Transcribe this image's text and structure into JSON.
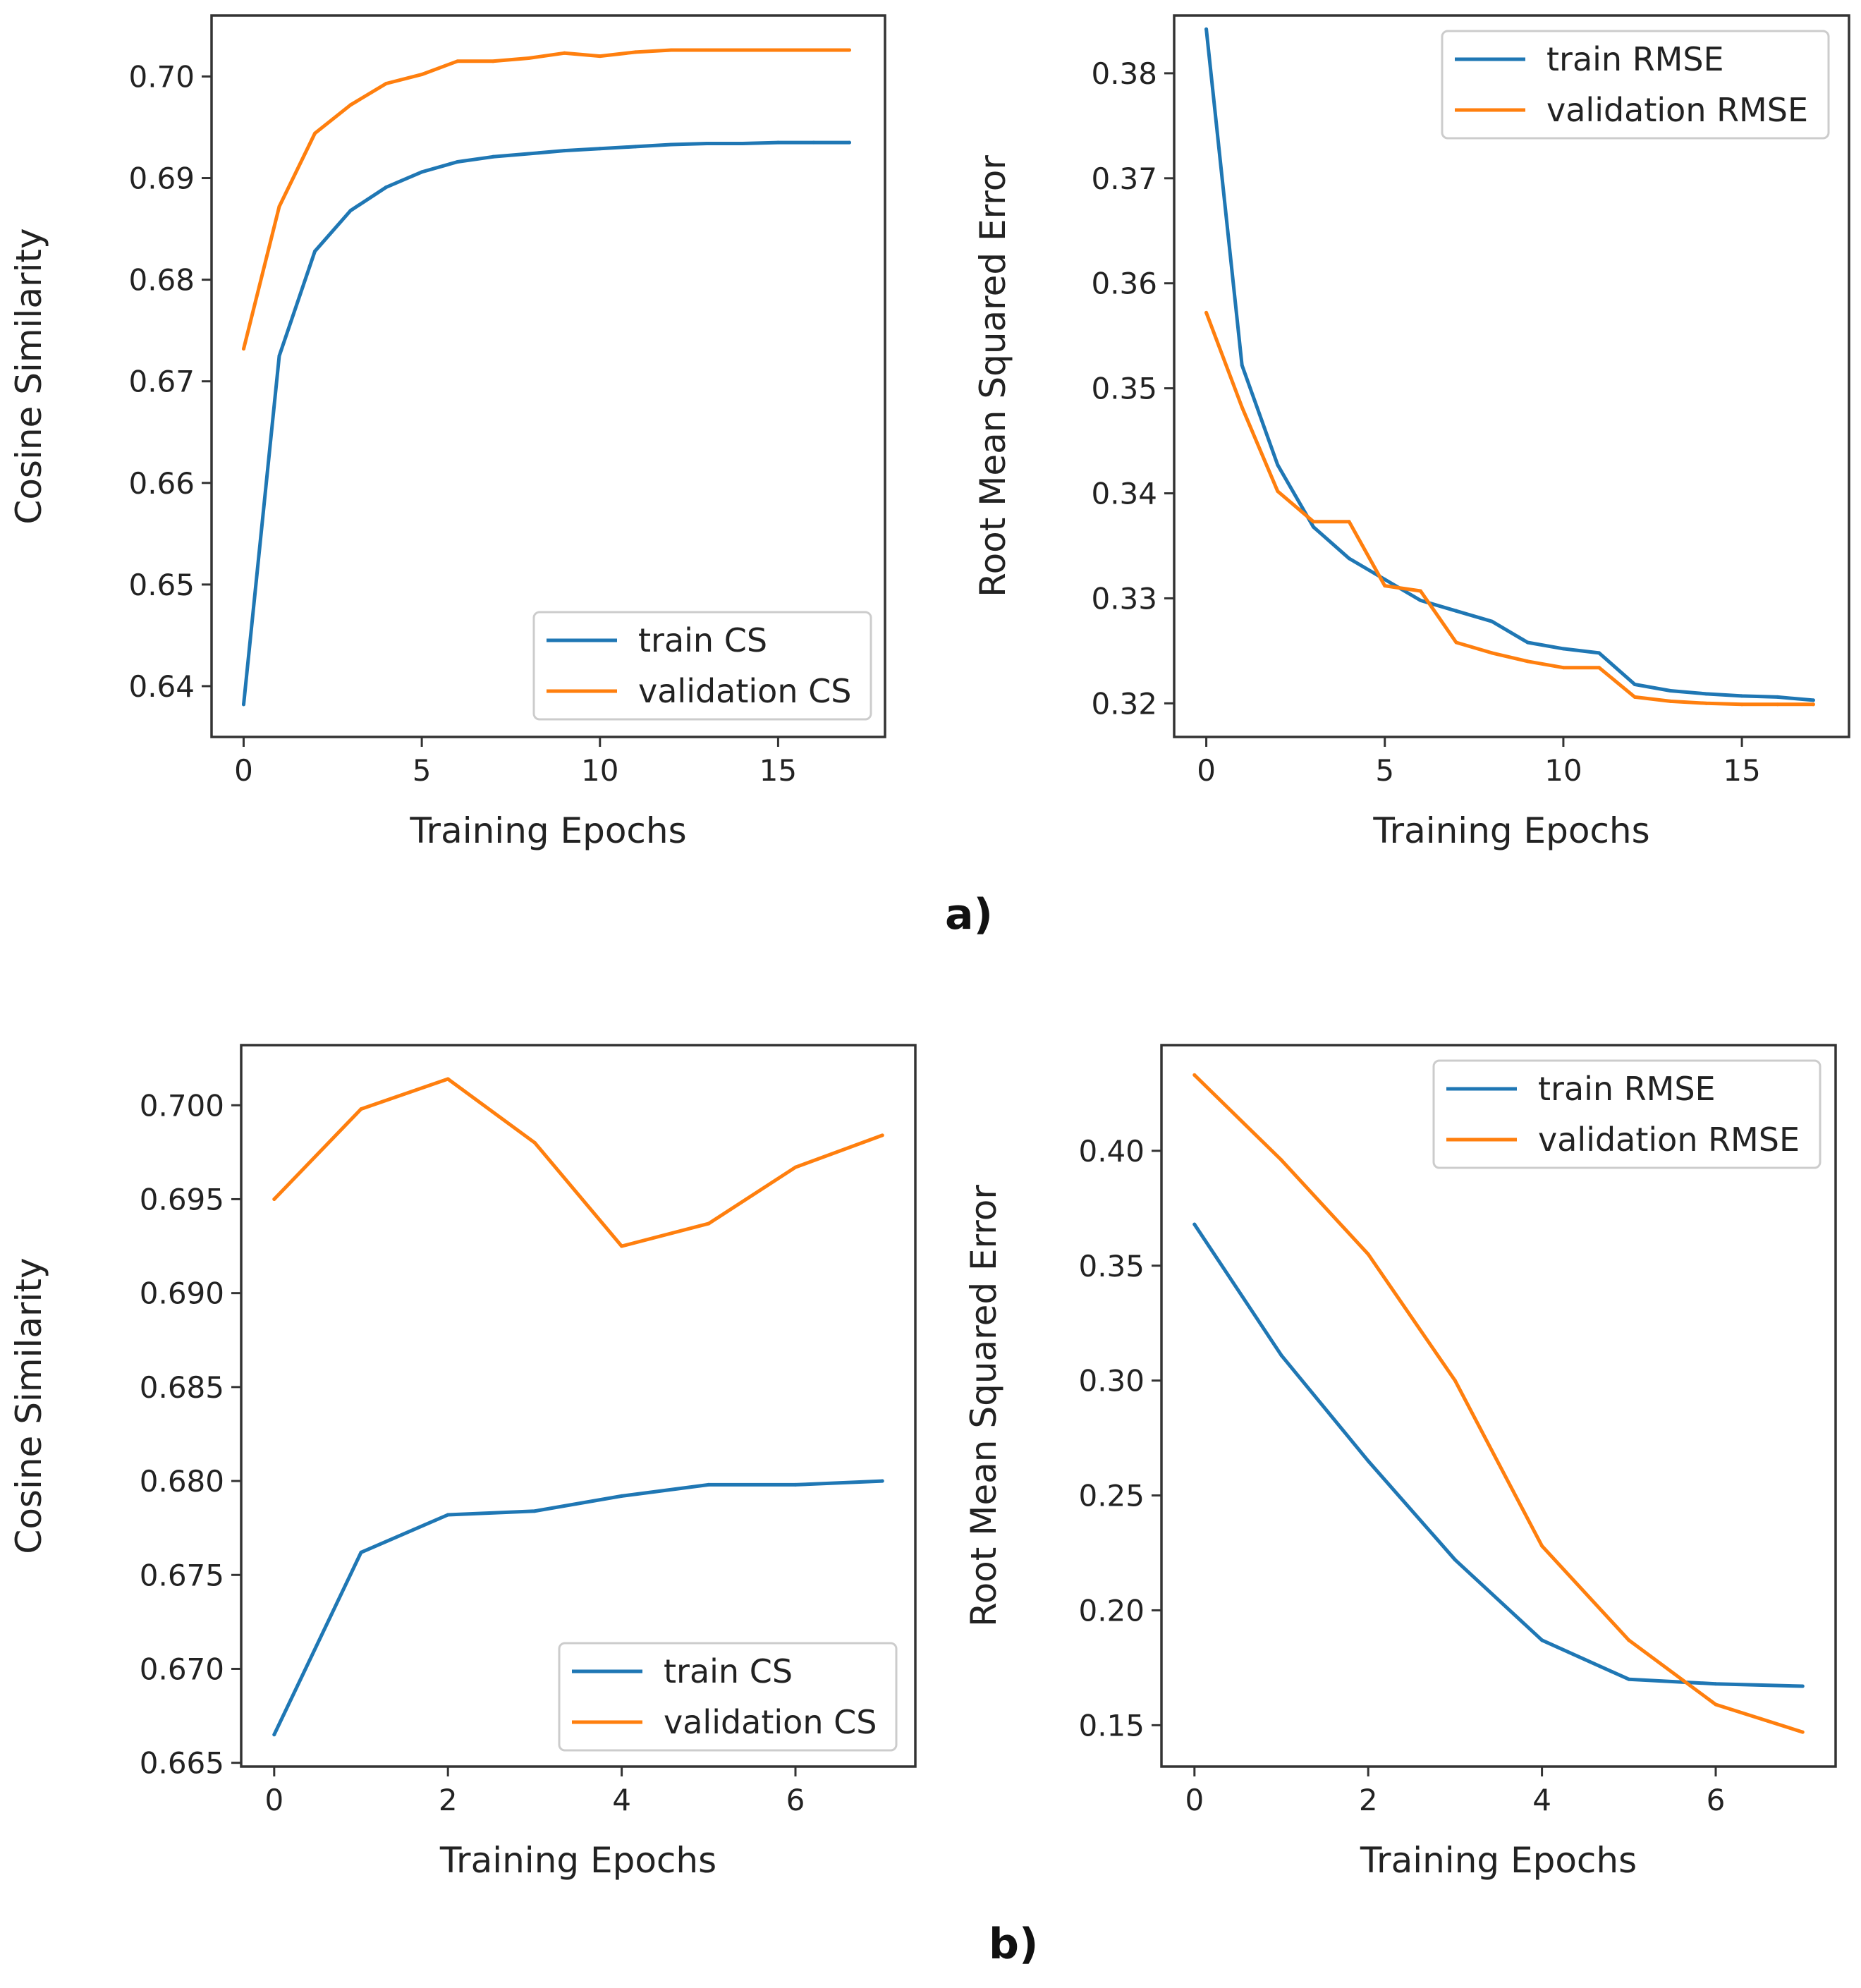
{
  "panel_labels": [
    "a)",
    "b)"
  ],
  "colors": {
    "train": "#1f77b4",
    "validation": "#ff7f0e",
    "axes": "#333333",
    "text": "#222222"
  },
  "chart_data": [
    {
      "id": "a-cs",
      "type": "line",
      "xlabel": "Training Epochs",
      "ylabel": "Cosine Similarity",
      "xlim": [
        -0.9,
        18
      ],
      "ylim": [
        0.635,
        0.706
      ],
      "xticks": [
        0,
        5,
        10,
        15
      ],
      "xtick_labels": [
        "0",
        "5",
        "10",
        "15"
      ],
      "yticks": [
        0.64,
        0.65,
        0.66,
        0.67,
        0.68,
        0.69,
        0.7
      ],
      "ytick_labels": [
        "0.64",
        "0.65",
        "0.66",
        "0.67",
        "0.68",
        "0.69",
        "0.70"
      ],
      "legend": "bottom-right",
      "x": [
        0,
        1,
        2,
        3,
        4,
        5,
        6,
        7,
        8,
        9,
        10,
        11,
        12,
        13,
        14,
        15,
        16,
        17
      ],
      "series": [
        {
          "name": "train CS",
          "color_key": "train",
          "values": [
            0.6382,
            0.6725,
            0.6828,
            0.6868,
            0.6891,
            0.6906,
            0.6916,
            0.6921,
            0.6924,
            0.6927,
            0.6929,
            0.6931,
            0.6933,
            0.6934,
            0.6934,
            0.6935,
            0.6935,
            0.6935
          ]
        },
        {
          "name": "validation CS",
          "color_key": "validation",
          "values": [
            0.6732,
            0.6872,
            0.6944,
            0.6972,
            0.6993,
            0.7002,
            0.7015,
            0.7015,
            0.7018,
            0.7023,
            0.702,
            0.7024,
            0.7026,
            0.7026,
            0.7026,
            0.7026,
            0.7026,
            0.7026
          ]
        }
      ]
    },
    {
      "id": "a-rmse",
      "type": "line",
      "xlabel": "Training Epochs",
      "ylabel": "Root Mean Squared Error",
      "xlim": [
        -0.9,
        18
      ],
      "ylim": [
        0.3168,
        0.3855
      ],
      "xticks": [
        0,
        5,
        10,
        15
      ],
      "xtick_labels": [
        "0",
        "5",
        "10",
        "15"
      ],
      "yticks": [
        0.32,
        0.33,
        0.34,
        0.35,
        0.36,
        0.37,
        0.38
      ],
      "ytick_labels": [
        "0.32",
        "0.33",
        "0.34",
        "0.35",
        "0.36",
        "0.37",
        "0.38"
      ],
      "legend": "top-right",
      "x": [
        0,
        1,
        2,
        3,
        4,
        5,
        6,
        7,
        8,
        9,
        10,
        11,
        12,
        13,
        14,
        15,
        16,
        17
      ],
      "series": [
        {
          "name": "train RMSE",
          "color_key": "train",
          "values": [
            0.3842,
            0.3522,
            0.3427,
            0.3368,
            0.3338,
            0.3318,
            0.3298,
            0.3288,
            0.3278,
            0.3258,
            0.3252,
            0.3248,
            0.3218,
            0.3212,
            0.3209,
            0.3207,
            0.3206,
            0.3203
          ]
        },
        {
          "name": "validation RMSE",
          "color_key": "validation",
          "values": [
            0.3572,
            0.3482,
            0.3402,
            0.3373,
            0.3373,
            0.3312,
            0.3307,
            0.3258,
            0.3248,
            0.324,
            0.3234,
            0.3234,
            0.3206,
            0.3202,
            0.32,
            0.3199,
            0.3199,
            0.3199
          ]
        }
      ]
    },
    {
      "id": "b-cs",
      "type": "line",
      "xlabel": "Training Epochs",
      "ylabel": "Cosine Similarity",
      "xlim": [
        -0.38,
        7.38
      ],
      "ylim": [
        0.6648,
        0.7032
      ],
      "xticks": [
        0,
        2,
        4,
        6
      ],
      "xtick_labels": [
        "0",
        "2",
        "4",
        "6"
      ],
      "yticks": [
        0.665,
        0.67,
        0.675,
        0.68,
        0.685,
        0.69,
        0.695,
        0.7
      ],
      "ytick_labels": [
        "0.665",
        "0.670",
        "0.675",
        "0.680",
        "0.685",
        "0.690",
        "0.695",
        "0.700"
      ],
      "legend": "bottom-right",
      "x": [
        0,
        1,
        2,
        3,
        4,
        5,
        6,
        7
      ],
      "series": [
        {
          "name": "train CS",
          "color_key": "train",
          "values": [
            0.6665,
            0.6762,
            0.6782,
            0.6784,
            0.6792,
            0.6798,
            0.6798,
            0.68
          ]
        },
        {
          "name": "validation CS",
          "color_key": "validation",
          "values": [
            0.695,
            0.6998,
            0.7014,
            0.698,
            0.6925,
            0.6937,
            0.6967,
            0.6984
          ]
        }
      ]
    },
    {
      "id": "b-rmse",
      "type": "line",
      "xlabel": "Training Epochs",
      "ylabel": "Root Mean Squared Error",
      "xlim": [
        -0.38,
        7.38
      ],
      "ylim": [
        0.132,
        0.446
      ],
      "xticks": [
        0,
        2,
        4,
        6
      ],
      "xtick_labels": [
        "0",
        "2",
        "4",
        "6"
      ],
      "yticks": [
        0.15,
        0.2,
        0.25,
        0.3,
        0.35,
        0.4
      ],
      "ytick_labels": [
        "0.15",
        "0.20",
        "0.25",
        "0.30",
        "0.35",
        "0.40"
      ],
      "legend": "top-right",
      "x": [
        0,
        1,
        2,
        3,
        4,
        5,
        6,
        7
      ],
      "series": [
        {
          "name": "train RMSE",
          "color_key": "train",
          "values": [
            0.368,
            0.311,
            0.265,
            0.222,
            0.187,
            0.17,
            0.168,
            0.167
          ]
        },
        {
          "name": "validation RMSE",
          "color_key": "validation",
          "values": [
            0.433,
            0.396,
            0.355,
            0.3,
            0.228,
            0.187,
            0.159,
            0.147
          ]
        }
      ]
    }
  ]
}
